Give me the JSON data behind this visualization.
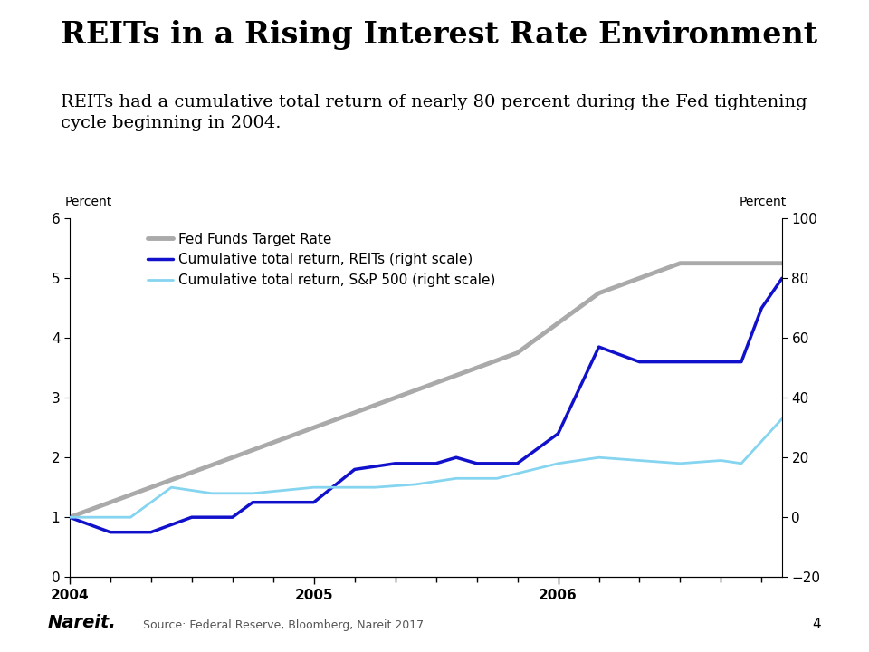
{
  "title": "REITs in a Rising Interest Rate Environment",
  "subtitle": "REITs had a cumulative total return of nearly 80 percent during the Fed tightening\ncycle beginning in 2004.",
  "ylabel_left": "Percent",
  "ylabel_right": "Percent",
  "source": "Source: Federal Reserve, Bloomberg, Nareit 2017",
  "page_number": "4",
  "ylim_left": [
    0,
    6
  ],
  "ylim_right": [
    -20,
    100
  ],
  "yticks_left": [
    0,
    1,
    2,
    3,
    4,
    5,
    6
  ],
  "yticks_right": [
    -20,
    0,
    20,
    40,
    60,
    80,
    100
  ],
  "xlim": [
    2004.0,
    2006.917
  ],
  "background_color": "#ffffff",
  "fed_funds_x": [
    2004.0,
    2004.167,
    2004.333,
    2004.5,
    2004.667,
    2004.833,
    2005.0,
    2005.167,
    2005.333,
    2005.5,
    2005.667,
    2005.833,
    2006.0,
    2006.167,
    2006.333,
    2006.5,
    2006.667,
    2006.833,
    2006.917
  ],
  "fed_funds_y": [
    1.0,
    1.25,
    1.5,
    1.75,
    2.0,
    2.25,
    2.5,
    2.75,
    3.0,
    3.25,
    3.5,
    3.75,
    4.25,
    4.75,
    5.0,
    5.25,
    5.25,
    5.25,
    5.25
  ],
  "reits_x": [
    2004.0,
    2004.167,
    2004.333,
    2004.5,
    2004.667,
    2004.75,
    2004.833,
    2005.0,
    2005.167,
    2005.333,
    2005.5,
    2005.583,
    2005.667,
    2005.75,
    2005.833,
    2006.0,
    2006.167,
    2006.333,
    2006.5,
    2006.667,
    2006.75,
    2006.833,
    2006.917
  ],
  "reits_y": [
    0,
    -5,
    -5,
    0,
    0,
    5,
    5,
    5,
    16,
    18,
    18,
    20,
    18,
    18,
    18,
    28,
    57,
    52,
    52,
    52,
    52,
    70,
    80
  ],
  "sp500_x": [
    2004.0,
    2004.25,
    2004.417,
    2004.583,
    2004.75,
    2005.0,
    2005.25,
    2005.417,
    2005.583,
    2005.75,
    2006.0,
    2006.167,
    2006.333,
    2006.5,
    2006.667,
    2006.75,
    2006.917
  ],
  "sp500_y": [
    0,
    0,
    10,
    8,
    8,
    10,
    10,
    11,
    13,
    13,
    18,
    20,
    19,
    18,
    19,
    18,
    33
  ],
  "fed_funds_color": "#aaaaaa",
  "reits_color": "#1111cc",
  "sp500_color": "#85d4f0",
  "fed_funds_linewidth": 3.5,
  "reits_linewidth": 2.5,
  "sp500_linewidth": 2.0,
  "legend_labels": [
    "Fed Funds Target Rate",
    "Cumulative total return, REITs (right scale)",
    "Cumulative total return, S&P 500 (right scale)"
  ],
  "title_fontsize": 24,
  "subtitle_fontsize": 14,
  "axis_label_fontsize": 10,
  "tick_fontsize": 11,
  "legend_fontsize": 11,
  "nareit_fontsize": 14,
  "source_fontsize": 9
}
